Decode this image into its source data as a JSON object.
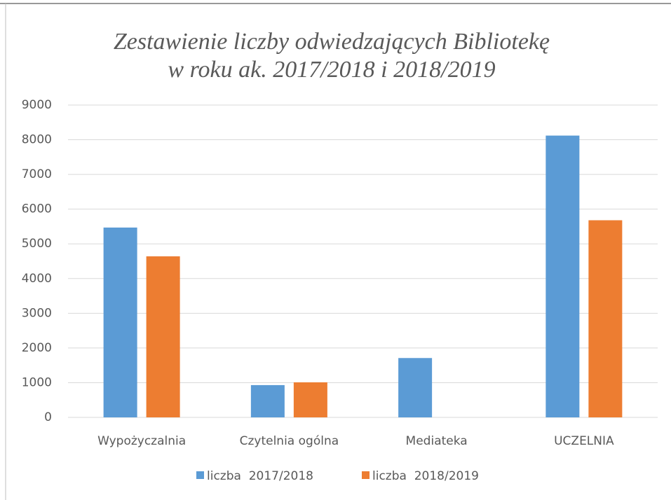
{
  "chart_data": {
    "type": "bar",
    "title": [
      "Zestawienie liczby odwiedzających Bibliotekę",
      "w roku ak. 2017/2018 i 2018/2019"
    ],
    "categories": [
      "Wypożyczalnia",
      "Czytelnia ogólna",
      "Mediateka",
      "UCZELNIA"
    ],
    "series": [
      {
        "name": "liczba  2017/2018",
        "color": "#5b9bd5",
        "values": [
          5470,
          930,
          1710,
          8120
        ]
      },
      {
        "name": "liczba  2018/2019",
        "color": "#ed7d31",
        "values": [
          4640,
          1010,
          0,
          5680
        ]
      }
    ],
    "ylim": [
      0,
      9000
    ],
    "yticks": [
      0,
      1000,
      2000,
      3000,
      4000,
      5000,
      6000,
      7000,
      8000,
      9000
    ],
    "grid": true,
    "legend": "bottom"
  }
}
